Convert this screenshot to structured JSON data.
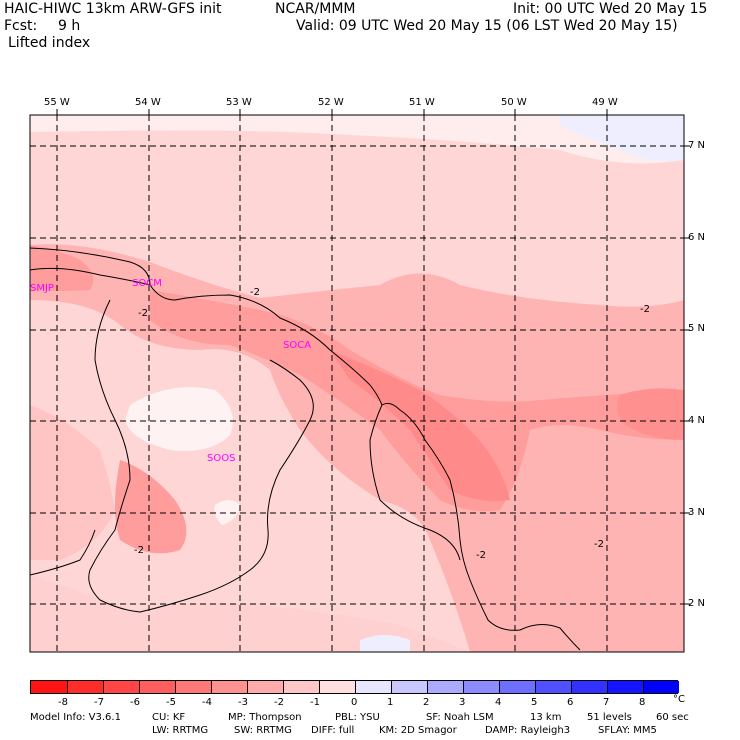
{
  "header": {
    "title_left": "HAIC-HIWC 13km ARW-GFS init",
    "title_center": "NCAR/MMM",
    "init": "Init: 00 UTC Wed 20 May 15",
    "fcst_label": "Fcst:",
    "fcst_value": "9 h",
    "valid": "Valid: 09 UTC Wed 20 May 15 (06 LST Wed 20 May 15)",
    "field": "Lifted index"
  },
  "map": {
    "lon_labels": [
      "55 W",
      "54 W",
      "53 W",
      "52 W",
      "51 W",
      "50 W",
      "49 W"
    ],
    "lat_labels": [
      "7 N",
      "6 N",
      "5 N",
      "4 N",
      "3 N",
      "2 N"
    ],
    "stations": [
      "SMJP",
      "SOCM",
      "SOCA",
      "SOOS"
    ],
    "contour_labels": [
      "-2",
      "-2",
      "-2",
      "-2",
      "-2",
      "-2"
    ]
  },
  "colorbar": {
    "labels": [
      "-8",
      "-7",
      "-6",
      "-5",
      "-4",
      "-3",
      "-2",
      "-1",
      "0",
      "1",
      "2",
      "3",
      "4",
      "5",
      "6",
      "7",
      "8"
    ],
    "unit": "°C",
    "colors": [
      "#ff1414",
      "#ff2c2c",
      "#ff4545",
      "#ff5e5e",
      "#ff7878",
      "#ff9191",
      "#ffabab",
      "#ffc6c6",
      "#ffe0e0",
      "#e6e6ff",
      "#c8c8ff",
      "#aaaaff",
      "#8c8cff",
      "#6e6eff",
      "#5050ff",
      "#3232ff",
      "#1414ff",
      "#0000ff"
    ]
  },
  "footer": {
    "line1": [
      "Model Info: V3.6.1",
      "CU: KF",
      "MP: Thompson",
      "PBL: YSU",
      "SF: Noah LSM",
      "13 km",
      "51 levels",
      "60 sec"
    ],
    "line2": [
      "LW: RRTMG",
      "SW: RRTMG",
      "DIFF: full",
      "KM: 2D Smagor",
      "DAMP: Rayleigh3",
      "SFLAY: MM5"
    ]
  }
}
